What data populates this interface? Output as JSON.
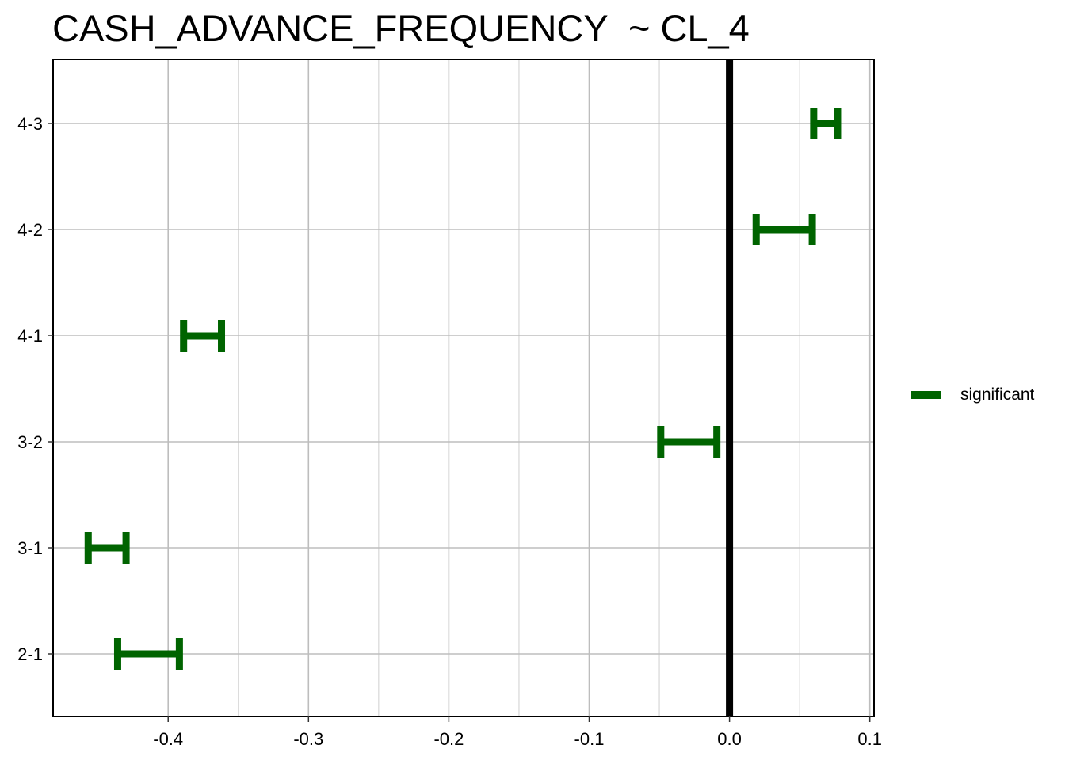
{
  "chart_data": {
    "type": "errorbar",
    "title": "CASH_ADVANCE_FREQUENCY  ~ CL_4",
    "xlabel": "",
    "ylabel": "",
    "xlim": [
      -0.482,
      0.103
    ],
    "x_ticks": [
      -0.4,
      -0.3,
      -0.2,
      -0.1,
      0.0,
      0.1
    ],
    "x_tick_labels": [
      "-0.4",
      "-0.3",
      "-0.2",
      "-0.1",
      "0.0",
      "0.1"
    ],
    "categories": [
      "4-3",
      "4-2",
      "4-1",
      "3-2",
      "3-1",
      "2-1"
    ],
    "series": [
      {
        "name": "significant",
        "color": "#006400",
        "intervals": [
          {
            "label": "4-3",
            "lower": 0.06,
            "upper": 0.077
          },
          {
            "label": "4-2",
            "lower": 0.019,
            "upper": 0.059
          },
          {
            "label": "4-1",
            "lower": -0.389,
            "upper": -0.362
          },
          {
            "label": "3-2",
            "lower": -0.049,
            "upper": -0.009
          },
          {
            "label": "3-1",
            "lower": -0.457,
            "upper": -0.43
          },
          {
            "label": "2-1",
            "lower": -0.436,
            "upper": -0.392
          }
        ]
      }
    ],
    "reference_line": 0.0,
    "grid": true,
    "legend_position": "right"
  }
}
